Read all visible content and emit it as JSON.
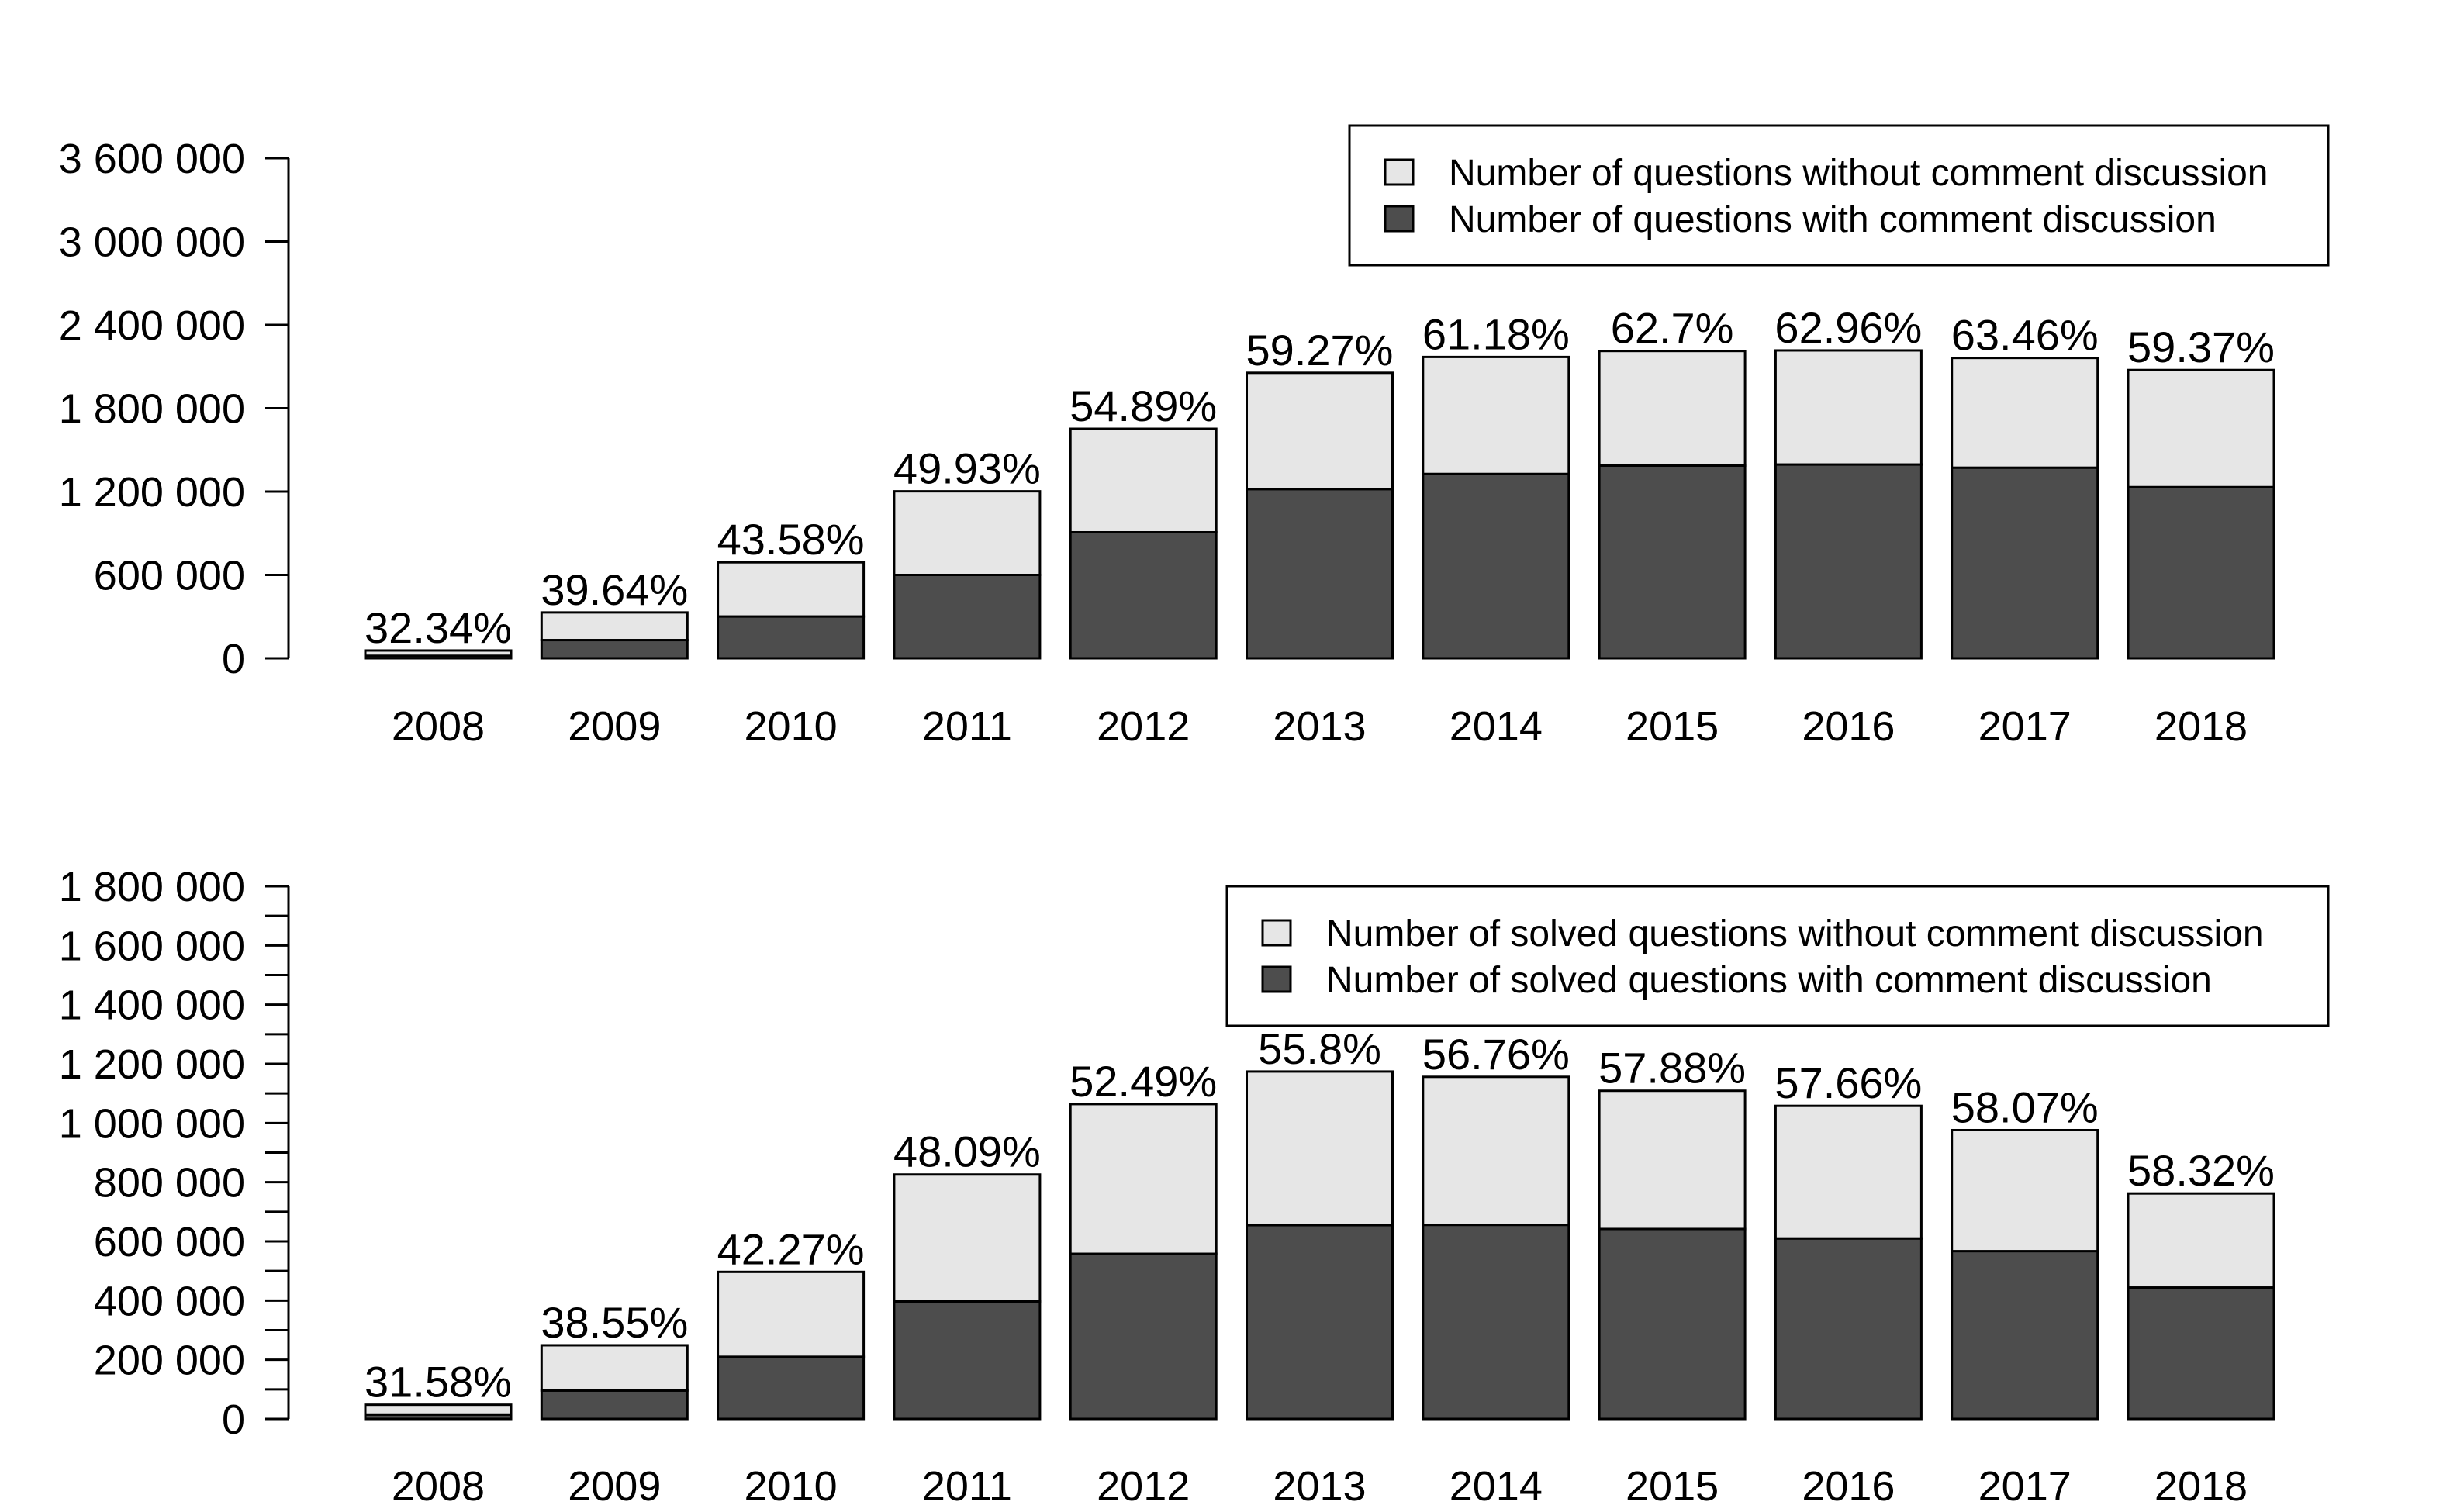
{
  "colors": {
    "with_comment": "#4d4d4d",
    "without_comment": "#e6e6e6",
    "border": "#000000"
  },
  "chart_data": [
    {
      "type": "bar",
      "stacked": true,
      "title": "",
      "xlabel": "",
      "ylabel": "",
      "categories": [
        "2008",
        "2009",
        "2010",
        "2011",
        "2012",
        "2013",
        "2014",
        "2015",
        "2016",
        "2017",
        "2018"
      ],
      "series": [
        {
          "name": "Number of questions with comment discussion",
          "color": "#4d4d4d",
          "values": [
            18000,
            131000,
            301000,
            600000,
            907000,
            1218000,
            1327000,
            1387000,
            1395000,
            1372000,
            1232000
          ]
        },
        {
          "name": "Number of questions without comment discussion",
          "color": "#e6e6e6",
          "values": [
            38000,
            199000,
            390000,
            602000,
            745000,
            837000,
            842000,
            825000,
            821000,
            790000,
            843000
          ]
        }
      ],
      "bar_labels": [
        "32.34%",
        "39.64%",
        "43.58%",
        "49.93%",
        "54.89%",
        "59.27%",
        "61.18%",
        "62.7%",
        "62.96%",
        "63.46%",
        "59.37%"
      ],
      "ylim": [
        0,
        3600000
      ],
      "yticks": [
        0,
        600000,
        1200000,
        1800000,
        2400000,
        3000000,
        3600000
      ],
      "ytick_labels": [
        "0",
        "600 000",
        "1 200 000",
        "1 800 000",
        "2 400 000",
        "3 000 000",
        "3 600 000"
      ],
      "minor_yticks": [],
      "legend": {
        "placement": "top-right",
        "entries": [
          {
            "label": "Number of questions without comment discussion",
            "color": "#e6e6e6"
          },
          {
            "label": "Number of questions with comment discussion",
            "color": "#4d4d4d"
          }
        ]
      },
      "grid": false
    },
    {
      "type": "bar",
      "stacked": true,
      "title": "",
      "xlabel": "",
      "ylabel": "",
      "categories": [
        "2008",
        "2009",
        "2010",
        "2011",
        "2012",
        "2013",
        "2014",
        "2015",
        "2016",
        "2017",
        "2018"
      ],
      "series": [
        {
          "name": "Number of solved questions with comment discussion",
          "color": "#4d4d4d",
          "values": [
            15000,
            96000,
            210000,
            397000,
            558000,
            655000,
            656000,
            642000,
            610000,
            567000,
            444000
          ]
        },
        {
          "name": "Number of solved questions without comment discussion",
          "color": "#e6e6e6",
          "values": [
            33000,
            153000,
            287000,
            429000,
            506000,
            519000,
            500000,
            467000,
            448000,
            409000,
            318000
          ]
        }
      ],
      "bar_labels": [
        "31.58%",
        "38.55%",
        "42.27%",
        "48.09%",
        "52.49%",
        "55.8%",
        "56.76%",
        "57.88%",
        "57.66%",
        "58.07%",
        "58.32%"
      ],
      "ylim": [
        0,
        1800000
      ],
      "yticks": [
        0,
        200000,
        400000,
        600000,
        800000,
        1000000,
        1200000,
        1400000,
        1600000,
        1800000
      ],
      "ytick_labels": [
        "0",
        "200 000",
        "400 000",
        "600 000",
        "800 000",
        "1 000 000",
        "1 200 000",
        "1 400 000",
        "1 600 000",
        "1 800 000"
      ],
      "minor_yticks": [
        100000,
        300000,
        500000,
        700000,
        900000,
        1100000,
        1300000,
        1500000,
        1700000
      ],
      "legend": {
        "placement": "top-right",
        "entries": [
          {
            "label": "Number of solved questions without comment discussion",
            "color": "#e6e6e6"
          },
          {
            "label": "Number of solved questions with comment discussion",
            "color": "#4d4d4d"
          }
        ]
      },
      "grid": false
    }
  ]
}
